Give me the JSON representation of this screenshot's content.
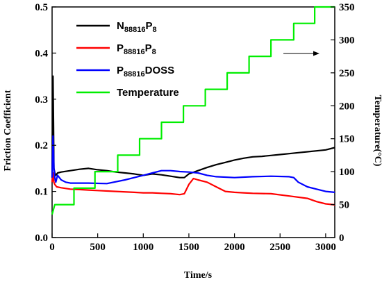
{
  "chart_data": {
    "type": "line",
    "title": "",
    "xlabel": "Time/s",
    "ylabel_left": "Friction Coefficient",
    "ylabel_right": "Temperature(°C)",
    "xlim": [
      0,
      3100
    ],
    "ylim_left": [
      0,
      0.5
    ],
    "ylim_right": [
      0,
      350
    ],
    "x_ticks": [
      0,
      500,
      1000,
      1500,
      2000,
      2500,
      3000
    ],
    "y_left_ticks": [
      "0.0",
      "0.1",
      "0.2",
      "0.3",
      "0.4",
      "0.5"
    ],
    "y_right_ticks": [
      0,
      50,
      100,
      150,
      200,
      250,
      300,
      350
    ],
    "grid": false,
    "legend_position": "top-left",
    "annotation": "arrow pointing right toward the Temperature (right) axis",
    "series": [
      {
        "name": "N88816P8",
        "name_parts": [
          "N",
          "88816",
          "P",
          "8",
          ""
        ],
        "axis": "left",
        "color": "#000000",
        "x": [
          0,
          10,
          15,
          20,
          30,
          40,
          60,
          100,
          200,
          300,
          400,
          500,
          600,
          700,
          800,
          900,
          1000,
          1100,
          1200,
          1300,
          1400,
          1450,
          1500,
          1600,
          1700,
          1800,
          1900,
          2000,
          2100,
          2200,
          2300,
          2400,
          2500,
          2600,
          2700,
          2800,
          2900,
          3000,
          3100
        ],
        "values": [
          0.13,
          0.35,
          0.25,
          0.15,
          0.14,
          0.135,
          0.14,
          0.142,
          0.145,
          0.148,
          0.15,
          0.147,
          0.145,
          0.142,
          0.14,
          0.138,
          0.135,
          0.138,
          0.136,
          0.133,
          0.13,
          0.13,
          0.138,
          0.145,
          0.152,
          0.158,
          0.163,
          0.168,
          0.172,
          0.175,
          0.176,
          0.178,
          0.18,
          0.182,
          0.184,
          0.186,
          0.188,
          0.19,
          0.195
        ]
      },
      {
        "name": "P88816P8",
        "name_parts": [
          "P",
          "88816",
          "P",
          "8",
          ""
        ],
        "axis": "left",
        "color": "#ff0000",
        "x": [
          0,
          10,
          20,
          30,
          50,
          100,
          200,
          300,
          400,
          500,
          700,
          900,
          1000,
          1100,
          1200,
          1300,
          1400,
          1450,
          1500,
          1550,
          1600,
          1700,
          1800,
          1900,
          2000,
          2100,
          2200,
          2400,
          2600,
          2800,
          2900,
          3000,
          3100
        ],
        "values": [
          0.12,
          0.14,
          0.12,
          0.115,
          0.11,
          0.108,
          0.105,
          0.104,
          0.103,
          0.102,
          0.1,
          0.098,
          0.097,
          0.097,
          0.096,
          0.095,
          0.093,
          0.095,
          0.115,
          0.128,
          0.125,
          0.12,
          0.11,
          0.1,
          0.098,
          0.097,
          0.096,
          0.095,
          0.09,
          0.085,
          0.078,
          0.073,
          0.071
        ]
      },
      {
        "name": "P88816DOSS",
        "name_parts": [
          "P",
          "88816",
          "DOSS",
          "",
          ""
        ],
        "axis": "left",
        "color": "#0000ff",
        "x": [
          0,
          10,
          15,
          20,
          30,
          40,
          60,
          100,
          150,
          200,
          400,
          600,
          800,
          900,
          1000,
          1100,
          1200,
          1300,
          1400,
          1500,
          1600,
          1700,
          1800,
          2000,
          2200,
          2400,
          2600,
          2650,
          2700,
          2800,
          2900,
          3000,
          3100
        ],
        "values": [
          0.13,
          0.22,
          0.19,
          0.15,
          0.13,
          0.12,
          0.135,
          0.125,
          0.12,
          0.118,
          0.118,
          0.117,
          0.125,
          0.13,
          0.135,
          0.14,
          0.145,
          0.145,
          0.143,
          0.142,
          0.14,
          0.135,
          0.132,
          0.13,
          0.132,
          0.133,
          0.132,
          0.13,
          0.12,
          0.11,
          0.105,
          0.1,
          0.098
        ]
      },
      {
        "name": "Temperature",
        "name_parts": [
          "Temperature",
          "",
          "",
          "",
          ""
        ],
        "axis": "right",
        "color": "#00ee00",
        "x": [
          0,
          30,
          30,
          240,
          240,
          470,
          470,
          720,
          720,
          960,
          960,
          1200,
          1200,
          1440,
          1440,
          1680,
          1680,
          1920,
          1920,
          2160,
          2160,
          2400,
          2400,
          2650,
          2650,
          2880,
          2880,
          3100
        ],
        "values": [
          35,
          50,
          50,
          50,
          75,
          75,
          100,
          100,
          125,
          125,
          150,
          150,
          175,
          175,
          200,
          200,
          225,
          225,
          250,
          250,
          275,
          275,
          300,
          300,
          325,
          325,
          350,
          350
        ]
      }
    ]
  }
}
